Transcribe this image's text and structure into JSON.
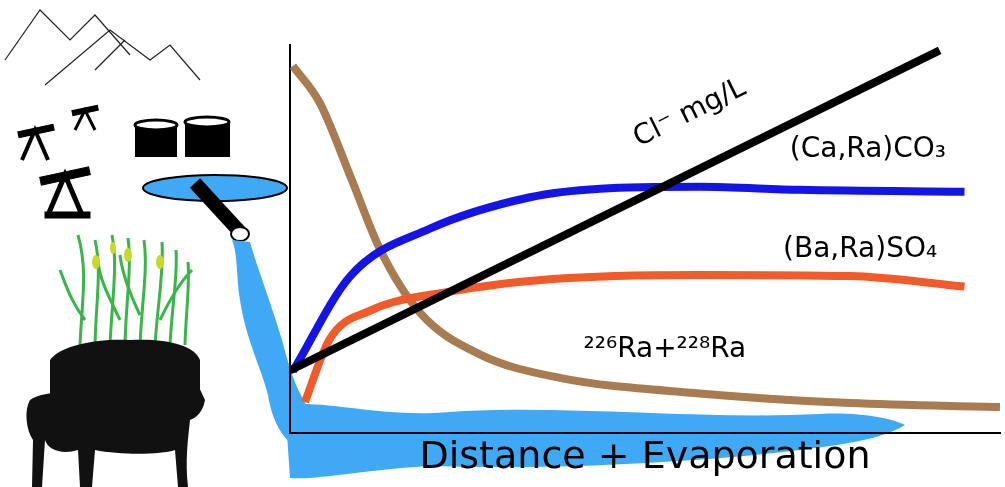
{
  "chart_data": {
    "type": "line",
    "x_label": "Distance + Evaporation",
    "xlim": [
      0,
      100
    ],
    "ylim": [
      0,
      100
    ],
    "tick_labels": false,
    "grid": false,
    "series": [
      {
        "name": "Cl⁻ mg/L",
        "color": "#000000",
        "x": [
          0,
          91.5
        ],
        "values": [
          16.2,
          98.6
        ],
        "label_position": [
          56.3,
          82.4
        ]
      },
      {
        "name": "(Ca,Ra)CO₃",
        "color": "#1414e6",
        "x": [
          0.4,
          8.5,
          19.7,
          33.8,
          43.7,
          57.7,
          71.8,
          95
        ],
        "values": [
          16,
          40.5,
          52.7,
          60.8,
          63,
          63.5,
          62.7,
          62.2
        ],
        "label_position": [
          81.4,
          73
        ]
      },
      {
        "name": "(Ba,Ra)SO₄",
        "color": "#f15a29",
        "x": [
          2.1,
          5.6,
          11.3,
          22.5,
          36.6,
          57.7,
          78.9,
          95
        ],
        "values": [
          8.1,
          24.3,
          31.6,
          36.5,
          39.7,
          40.8,
          40.5,
          37.8
        ],
        "label_position": [
          80.3,
          47.3
        ]
      },
      {
        "name": "²²⁶Ra+²²⁸Ra",
        "color": "#a87c50",
        "x": [
          0.4,
          4.2,
          8.5,
          12.7,
          18.3,
          26.8,
          38,
          57.7,
          78.9,
          100
        ],
        "values": [
          94.6,
          85.1,
          66.2,
          47.3,
          31.1,
          20.3,
          14.3,
          10.3,
          7.8,
          6.8
        ],
        "label_position": [
          52.8,
          21.6
        ]
      }
    ]
  }
}
